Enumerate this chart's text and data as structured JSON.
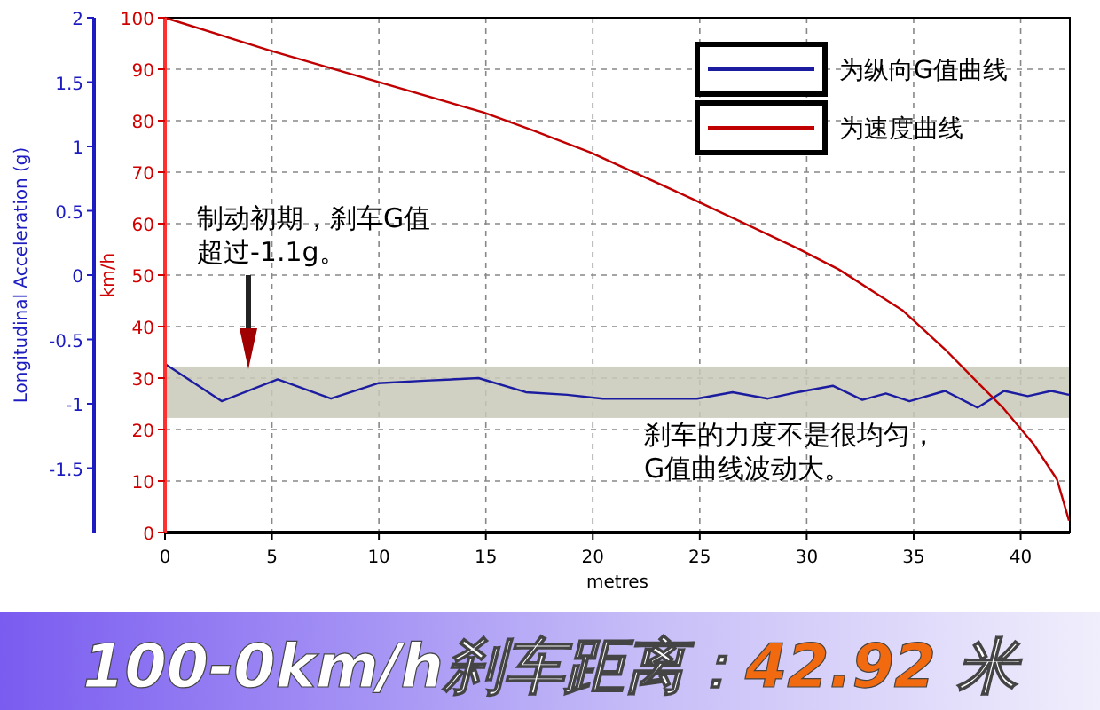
{
  "chart_data": {
    "type": "line",
    "title": "100-0km/h刹车距离：42.92 米",
    "xlabel": "metres",
    "ylabel": "km/h",
    "y2label": "Longitudinal Acceleration (g)",
    "xlim": [
      0,
      42.3
    ],
    "xticks": [
      0,
      5,
      10,
      15,
      20,
      25,
      30,
      35,
      40
    ],
    "ylim": [
      0,
      100
    ],
    "yticks": [
      0,
      10,
      20,
      30,
      40,
      50,
      60,
      70,
      80,
      90,
      100
    ],
    "y2lim": [
      -2,
      2
    ],
    "y2ticks": [
      -1.5,
      -1,
      -0.5,
      0,
      0.5,
      1,
      1.5,
      2
    ],
    "grid": true,
    "legend": "top right",
    "line_style": "solid",
    "marker": "none",
    "series": [
      {
        "name": "为纵向G值曲线",
        "color": "#1c1ca0",
        "axis": "y2",
        "x": [
          0,
          2.65,
          5.27,
          7.76,
          9.96,
          12.17,
          14.66,
          16.87,
          18.8,
          20.46,
          24.87,
          26.53,
          28.18,
          29.57,
          31.22,
          32.6,
          33.7,
          34.8,
          36.46,
          37.99,
          39.23,
          40.33,
          41.43,
          42.26
        ],
        "values": [
          -0.69,
          -0.98,
          -0.81,
          -0.96,
          -0.84,
          -0.82,
          -0.8,
          -0.91,
          -0.93,
          -0.96,
          -0.96,
          -0.91,
          -0.96,
          -0.91,
          -0.86,
          -0.97,
          -0.92,
          -0.98,
          -0.9,
          -1.03,
          -0.9,
          -0.94,
          -0.9,
          -0.93
        ]
      },
      {
        "name": "为速度曲线",
        "color": "#c00000",
        "x": [
          0,
          4.86,
          14.88,
          17.14,
          19.9,
          24.6,
          29.57,
          31.5,
          34.5,
          36.46,
          38.1,
          39.2,
          40.6,
          41.7,
          42.26
        ],
        "values": [
          100,
          93.7,
          81.6,
          78.2,
          73.8,
          64.9,
          55.2,
          51.1,
          43.1,
          35.6,
          28.7,
          24.1,
          17.2,
          10.3,
          2.3
        ]
      }
    ],
    "bands": [
      {
        "axis": "y2",
        "from": -1.11,
        "to": -0.71,
        "color": "#c8c8b8"
      }
    ],
    "annotations": [
      "制动初期，刹车G值超过-1.1g。",
      "刹车的力度不是很均匀，G值曲线波动大。"
    ]
  }
}
